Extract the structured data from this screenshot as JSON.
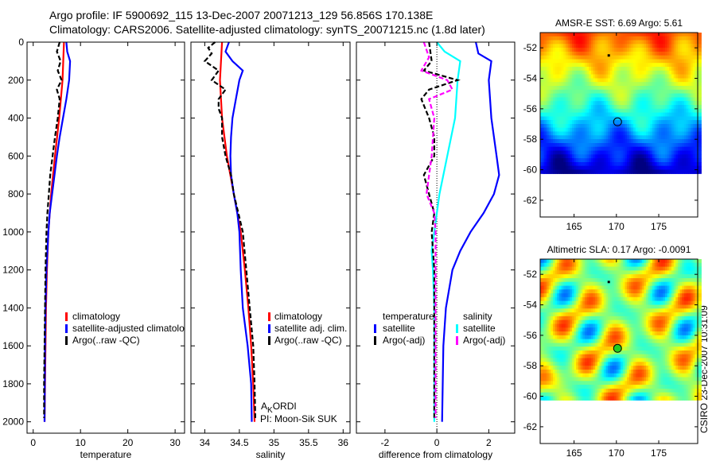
{
  "title_lines": [
    "Argo profile: IF 5900692_115 13-Dec-2007 20071213_129 56.856S 170.138E",
    "Climatology: CARS2006. Satellite-adjusted climatology: synTS_20071215.nc (1.8d later)"
  ],
  "footer": "CSIRO 23-Dec-2007 10:31:09",
  "colors": {
    "red": "#ff0000",
    "blue": "#0000ff",
    "black": "#000000",
    "cyan": "#00ffff",
    "magenta": "#ff00ff"
  },
  "chart_data": [
    {
      "type": "line",
      "xlabel": "temperature",
      "ylim": [
        2060,
        0
      ],
      "xlim": [
        -1.3,
        32
      ],
      "xticks": [
        "0",
        "10",
        "20",
        "30"
      ],
      "xtick_values": [
        0,
        10,
        20,
        30
      ],
      "yticks": [
        "0",
        "200",
        "400",
        "600",
        "800",
        "1000",
        "1200",
        "1400",
        "1600",
        "1800",
        "2000"
      ],
      "ytick_values": [
        0,
        200,
        400,
        600,
        800,
        1000,
        1200,
        1400,
        1600,
        1800,
        2000
      ],
      "legend": [
        "climatology",
        "satellite-adjusted climatolo",
        "Argo(..raw -QC)"
      ],
      "series": [
        {
          "name": "climatology",
          "color": "red",
          "dash": false,
          "depth": [
            0,
            200,
            400,
            600,
            800,
            1000,
            1200,
            1400,
            1600,
            1800,
            2000
          ],
          "values": [
            6.5,
            6.2,
            5.5,
            4.6,
            3.8,
            3.2,
            2.9,
            2.7,
            2.6,
            2.5,
            2.4
          ]
        },
        {
          "name": "satellite-adjusted climatology",
          "color": "blue",
          "dash": false,
          "depth": [
            0,
            50,
            100,
            200,
            300,
            400,
            500,
            600,
            700,
            800,
            900,
            1000,
            1200,
            1400,
            1600,
            2000
          ],
          "values": [
            7.0,
            7.2,
            7.8,
            7.6,
            7.0,
            6.3,
            5.6,
            5.0,
            4.5,
            4.0,
            3.5,
            3.2,
            2.8,
            2.6,
            2.5,
            2.4
          ]
        },
        {
          "name": "Argo(..raw -QC)",
          "color": "black",
          "dash": true,
          "depth": [
            0,
            50,
            100,
            150,
            200,
            250,
            300,
            400,
            500,
            600,
            700,
            800,
            900,
            1000,
            1200,
            1400,
            1600,
            1800,
            1980
          ],
          "values": [
            5.6,
            5.0,
            5.8,
            5.2,
            6.0,
            5.0,
            5.6,
            5.2,
            4.6,
            4.1,
            3.6,
            3.3,
            3.0,
            2.8,
            2.6,
            2.5,
            2.4,
            2.3,
            2.3
          ]
        }
      ]
    },
    {
      "type": "line",
      "xlabel": "salinity",
      "ylim": [
        2060,
        0
      ],
      "xlim": [
        33.8,
        36.1
      ],
      "xticks": [
        "34",
        "34.5",
        "35",
        "35.5",
        "36"
      ],
      "xtick_values": [
        34,
        34.5,
        35,
        35.5,
        36
      ],
      "legend": [
        "climatology",
        "satellite adj. clim.",
        "Argo(..raw -QC)"
      ],
      "annotation": {
        "main": "A",
        "sub": "K",
        "rest": "ORDI",
        "pi": "PI: Moon-Sik SUK"
      },
      "series": [
        {
          "name": "climatology",
          "color": "red",
          "dash": false,
          "depth": [
            0,
            200,
            400,
            600,
            800,
            1000,
            1200,
            1400,
            1600,
            1800,
            2000
          ],
          "values": [
            34.25,
            34.22,
            34.25,
            34.32,
            34.42,
            34.52,
            34.58,
            34.63,
            34.67,
            34.7,
            34.72
          ]
        },
        {
          "name": "satellite adj. clim.",
          "color": "blue",
          "dash": false,
          "depth": [
            0,
            50,
            100,
            150,
            200,
            300,
            400,
            500,
            600,
            700,
            800,
            900,
            1000,
            1200,
            1400,
            1600,
            1800,
            2000
          ],
          "values": [
            34.35,
            34.3,
            34.4,
            34.55,
            34.5,
            34.45,
            34.4,
            34.38,
            34.37,
            34.38,
            34.42,
            34.47,
            34.5,
            34.52,
            34.55,
            34.62,
            34.67,
            34.68
          ]
        },
        {
          "name": "Argo(..raw -QC)",
          "color": "black",
          "dash": true,
          "depth": [
            0,
            30,
            60,
            100,
            150,
            200,
            250,
            300,
            350,
            400,
            500,
            600,
            700,
            800,
            1000,
            1200,
            1400,
            1600,
            1800,
            1980
          ],
          "values": [
            34.15,
            34.05,
            34.1,
            34.0,
            34.2,
            34.1,
            34.3,
            34.2,
            34.2,
            34.25,
            34.25,
            34.3,
            34.38,
            34.42,
            34.55,
            34.6,
            34.65,
            34.7,
            34.72,
            34.73
          ]
        }
      ]
    },
    {
      "type": "line",
      "xlabel": "difference from climatology",
      "ylim": [
        2060,
        0
      ],
      "xlim": [
        -3.1,
        3.0
      ],
      "xticks": [
        "-2",
        "0",
        "2"
      ],
      "xtick_values": [
        -2,
        0,
        2
      ],
      "legend_headers": [
        "temperature",
        "salinity"
      ],
      "legend": [
        "satellite",
        "Argo(-adj)",
        "satellite",
        "Argo(-adj)"
      ],
      "series": [
        {
          "name": "temperature satellite",
          "color": "blue",
          "dash": false,
          "depth": [
            0,
            60,
            100,
            200,
            400,
            600,
            700,
            800,
            900,
            1000,
            1100,
            1200,
            1400,
            1600,
            2000
          ],
          "values": [
            1.5,
            1.6,
            2.1,
            2.0,
            2.1,
            2.3,
            2.4,
            2.2,
            1.8,
            1.3,
            0.9,
            0.6,
            0.35,
            0.25,
            0.2
          ]
        },
        {
          "name": "salinity satellite",
          "color": "cyan",
          "dash": false,
          "depth": [
            0,
            50,
            100,
            200,
            400,
            600,
            800,
            900,
            1000,
            1100,
            1200,
            1400,
            2000
          ],
          "values": [
            0.0,
            0.3,
            0.9,
            0.8,
            0.7,
            0.4,
            0.1,
            0.0,
            -0.1,
            -0.2,
            -0.15,
            -0.1,
            -0.1
          ]
        },
        {
          "name": "temperature Argo(-adj)",
          "color": "black",
          "dash": true,
          "depth": [
            0,
            100,
            150,
            200,
            250,
            300,
            400,
            500,
            600,
            700,
            800,
            900,
            1000,
            1200,
            1400,
            1980
          ],
          "values": [
            -0.3,
            -0.2,
            -0.5,
            0.8,
            -0.3,
            -0.6,
            -0.3,
            -0.1,
            -0.1,
            -0.5,
            -0.3,
            -0.1,
            -0.2,
            -0.1,
            -0.1,
            -0.1
          ]
        },
        {
          "name": "salinity Argo(-adj)",
          "color": "magenta",
          "dash": true,
          "depth": [
            0,
            80,
            150,
            200,
            250,
            300,
            400,
            600,
            800,
            900,
            1000,
            1980
          ],
          "values": [
            -0.5,
            -0.3,
            -0.6,
            0.4,
            0.6,
            -0.3,
            -0.1,
            -0.2,
            -0.4,
            -0.1,
            -0.05,
            -0.05
          ]
        }
      ]
    },
    {
      "type": "heatmap",
      "title": "AMSR-E SST: 6.69 Argo: 5.61",
      "xticks": [
        "165",
        "170",
        "175"
      ],
      "xtick_values": [
        165,
        170,
        175
      ],
      "yticks": [
        "-52",
        "-54",
        "-56",
        "-58",
        "-60",
        "-62"
      ],
      "ytick_values": [
        -52,
        -54,
        -56,
        -58,
        -60,
        -62
      ],
      "xlim": [
        161,
        179.6
      ],
      "ylim": [
        -63.1,
        -51.0
      ],
      "marker": {
        "lon": 170.138,
        "lat": -56.856
      }
    },
    {
      "type": "heatmap",
      "title": "Altimetric SLA: 0.17 Argo: -0.0091",
      "xticks": [
        "165",
        "170",
        "175"
      ],
      "xtick_values": [
        165,
        170,
        175
      ],
      "yticks": [
        "-52",
        "-54",
        "-56",
        "-58",
        "-60",
        "-62"
      ],
      "ytick_values": [
        -52,
        -54,
        -56,
        -58,
        -60,
        -62
      ],
      "xlim": [
        161,
        179.6
      ],
      "ylim": [
        -63.1,
        -51.0
      ],
      "marker": {
        "lon": 170.138,
        "lat": -56.856
      }
    }
  ]
}
